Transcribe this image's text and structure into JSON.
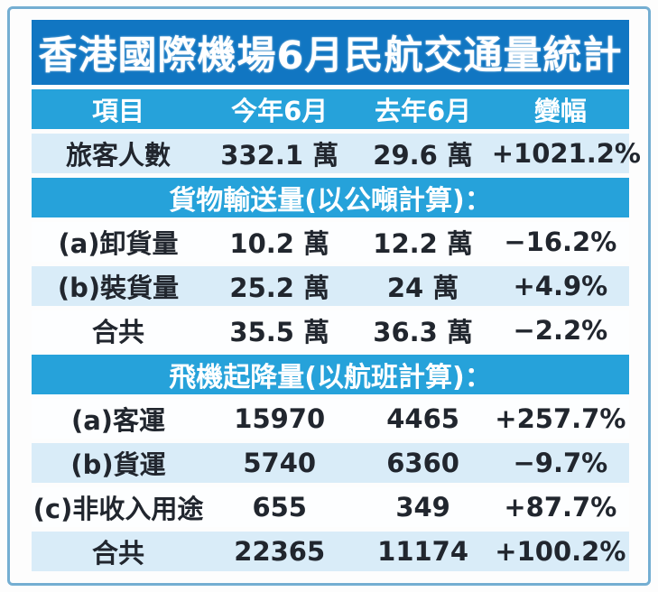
{
  "title": "香港國際機場6月民航交通量統計",
  "table": {
    "columns": [
      "項目",
      "今年6月",
      "去年6月",
      "變幅"
    ],
    "rows": [
      {
        "type": "data",
        "shade": "light",
        "cells": [
          "旅客人數",
          "332.1 萬",
          "29.6 萬",
          "+1021.2%"
        ]
      },
      {
        "type": "section",
        "label": "貨物輸送量(以公噸計算)："
      },
      {
        "type": "data",
        "shade": "white",
        "cells": [
          "(a)卸貨量",
          "10.2 萬",
          "12.2 萬",
          "−16.2%"
        ]
      },
      {
        "type": "data",
        "shade": "light",
        "cells": [
          "(b)裝貨量",
          "25.2 萬",
          "24 萬",
          "+4.9%"
        ]
      },
      {
        "type": "data",
        "shade": "white",
        "cells": [
          "合共",
          "35.5 萬",
          "36.3 萬",
          "−2.2%"
        ]
      },
      {
        "type": "section",
        "label": "飛機起降量(以航班計算)："
      },
      {
        "type": "data",
        "shade": "white",
        "cells": [
          "(a)客運",
          "15970",
          "4465",
          "+257.7%"
        ]
      },
      {
        "type": "data",
        "shade": "light",
        "cells": [
          "(b)貨運",
          "5740",
          "6360",
          "−9.7%"
        ]
      },
      {
        "type": "data",
        "shade": "white",
        "cells": [
          "(c)非收入用途",
          "655",
          "349",
          "+87.7%"
        ]
      },
      {
        "type": "data",
        "shade": "light",
        "cells": [
          "合共",
          "22365",
          "11174",
          "+100.2%"
        ]
      }
    ]
  },
  "colors": {
    "title_band": "#1176c2",
    "header_band": "#26a2da",
    "row_light": "#d9ecf8",
    "row_white": "#fdfeff",
    "frame_border": "#74aed2",
    "text": "#21262e",
    "header_text": "#ffffff"
  },
  "chart_data": {
    "type": "table",
    "title": "香港國際機場6月民航交通量統計",
    "columns": [
      "項目",
      "今年6月",
      "去年6月",
      "變幅"
    ],
    "sections": [
      {
        "section": null,
        "rows": [
          {
            "item": "旅客人數",
            "this_june": "332.1 萬",
            "last_june": "29.6 萬",
            "change": "+1021.2%"
          }
        ]
      },
      {
        "section": "貨物輸送量(以公噸計算)：",
        "rows": [
          {
            "item": "(a)卸貨量",
            "this_june": "10.2 萬",
            "last_june": "12.2 萬",
            "change": "−16.2%"
          },
          {
            "item": "(b)裝貨量",
            "this_june": "25.2 萬",
            "last_june": "24 萬",
            "change": "+4.9%"
          },
          {
            "item": "合共",
            "this_june": "35.5 萬",
            "last_june": "36.3 萬",
            "change": "−2.2%"
          }
        ]
      },
      {
        "section": "飛機起降量(以航班計算)：",
        "rows": [
          {
            "item": "(a)客運",
            "this_june": "15970",
            "last_june": "4465",
            "change": "+257.7%"
          },
          {
            "item": "(b)貨運",
            "this_june": "5740",
            "last_june": "6360",
            "change": "−9.7%"
          },
          {
            "item": "(c)非收入用途",
            "this_june": "655",
            "last_june": "349",
            "change": "+87.7%"
          },
          {
            "item": "合共",
            "this_june": "22365",
            "last_june": "11174",
            "change": "+100.2%"
          }
        ]
      }
    ]
  }
}
